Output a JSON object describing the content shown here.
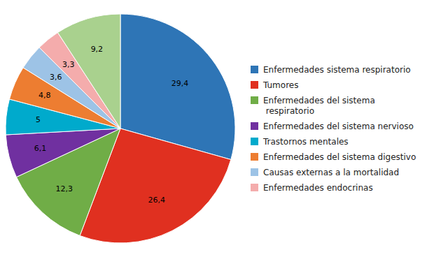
{
  "chart_data": {
    "type": "pie",
    "categories": [
      "Enfermedades sistema respiratorio",
      "Tumores",
      "Enfermedades del sistema\n respiratorio",
      "Enfermedades del sistema nervioso",
      "Trastornos mentales",
      "Enfermedades del sistema digestivo",
      "Causas externas a la mortalidad",
      "Enfermedades endocrinas",
      null
    ],
    "values": [
      29.4,
      26.4,
      12.3,
      6.1,
      5.0,
      4.8,
      3.6,
      3.3,
      9.2
    ],
    "value_labels": [
      "29,4",
      "26,4",
      "12,3",
      "6,1",
      "5",
      "4,8",
      "3,6",
      "3,3",
      "9,2"
    ],
    "colors": [
      "#2E75B6",
      "#E03020",
      "#70AD47",
      "#7030A0",
      "#00AACC",
      "#ED7D31",
      "#9DC3E6",
      "#F4ACAC",
      "#A9D18E"
    ],
    "data_labels": true,
    "legend": "right"
  }
}
